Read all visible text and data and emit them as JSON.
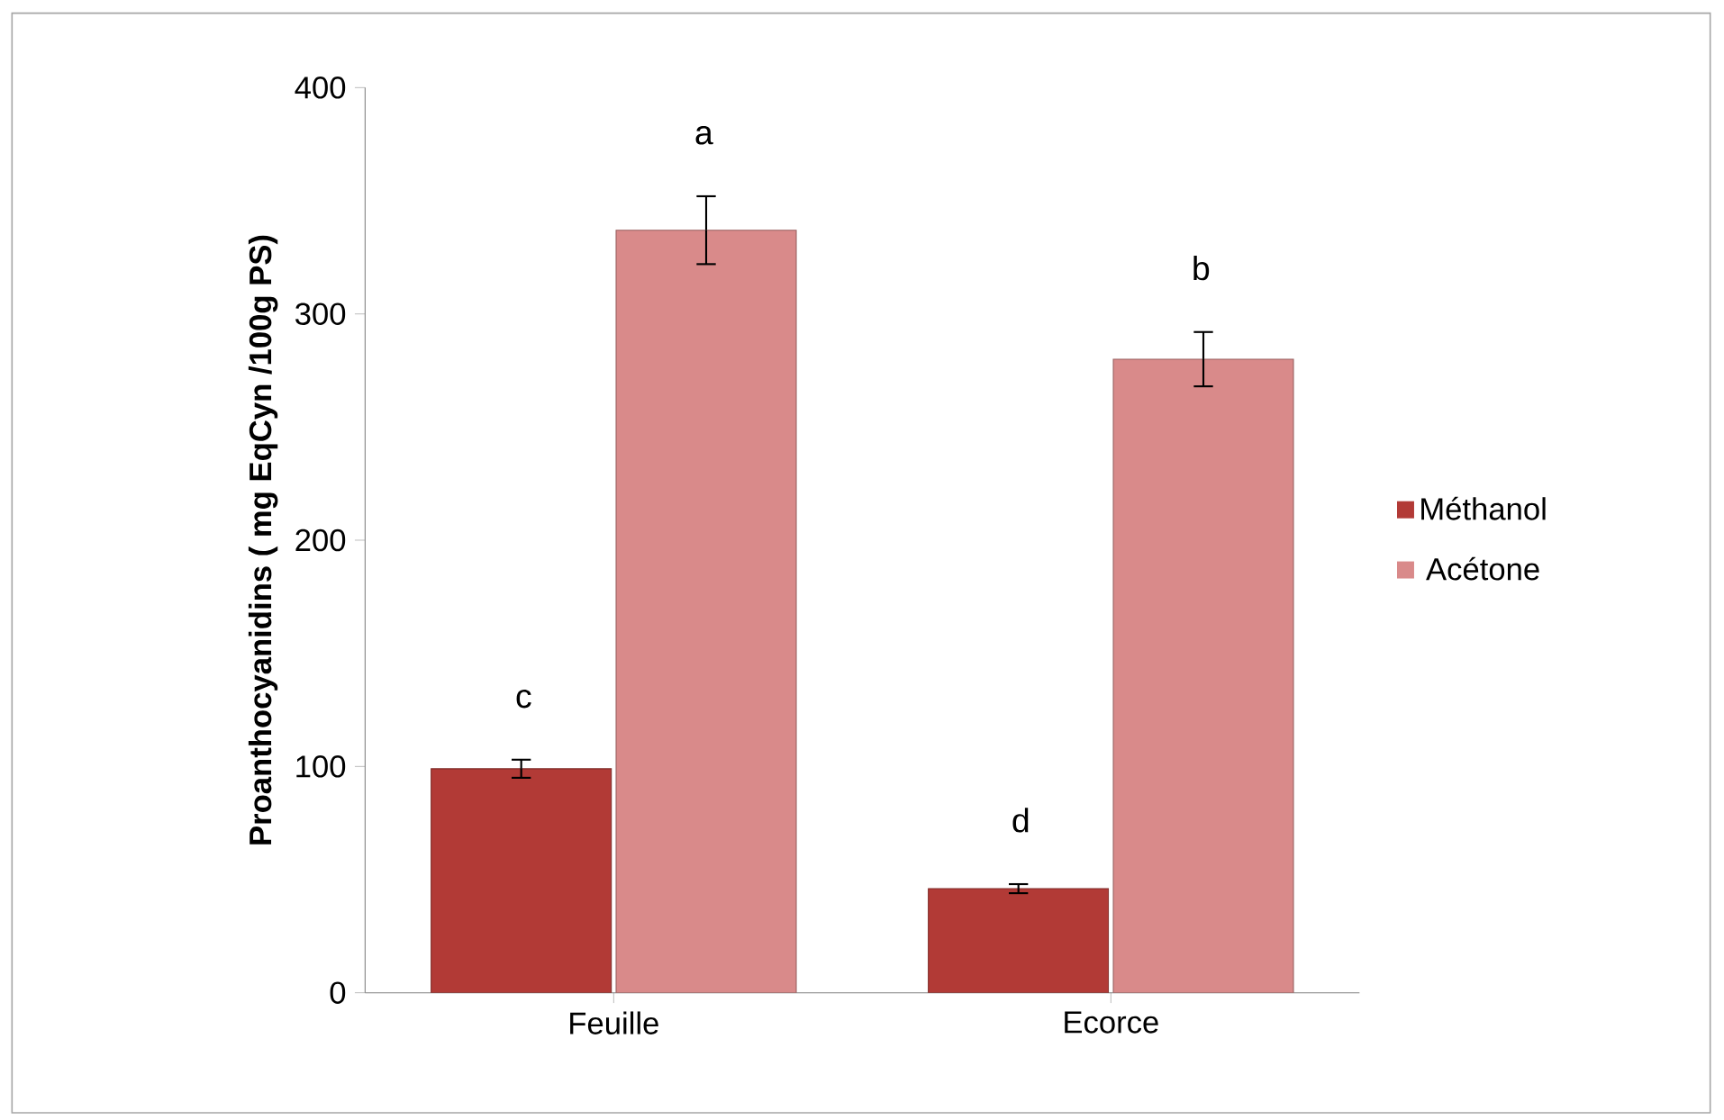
{
  "chart_data": {
    "type": "bar",
    "ylabel": "Proanthocyanidins ( mg EqCyn /100g PS)",
    "categories": [
      "Feuille",
      "Ecorce"
    ],
    "series": [
      {
        "name": "Méthanol",
        "color": "#b23a36",
        "values": [
          99,
          46
        ],
        "errors": [
          4,
          2
        ]
      },
      {
        "name": "Acétone",
        "color": "#d98a8a",
        "values": [
          337,
          280
        ],
        "errors": [
          15,
          12
        ]
      }
    ],
    "ylim": [
      0,
      400
    ],
    "yticks": [
      0,
      100,
      200,
      300,
      400
    ],
    "grid": false,
    "legend": "right",
    "annotations": [
      "c",
      "a",
      "d",
      "b"
    ]
  }
}
